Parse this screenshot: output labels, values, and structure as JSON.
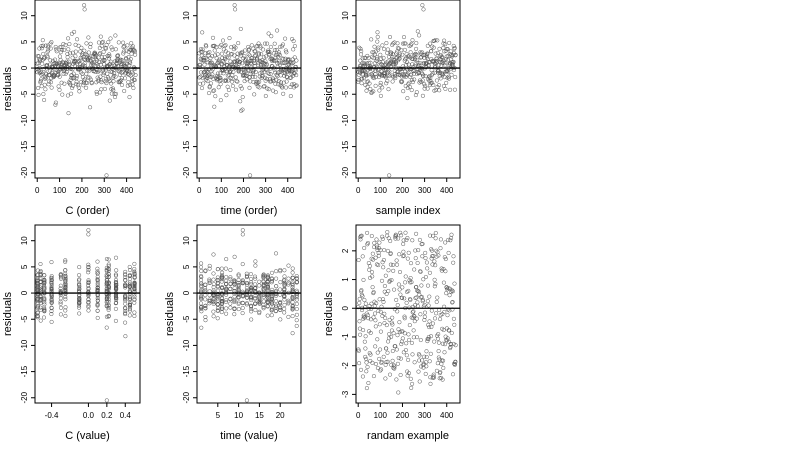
{
  "chart_data": [
    {
      "type": "scatter",
      "xlabel": "C (order)",
      "ylabel": "residuals",
      "x_ticks": [
        0,
        100,
        200,
        300,
        400
      ],
      "y_ticks": [
        10,
        5,
        0,
        -5,
        -10,
        -15,
        -20
      ],
      "xlim": [
        -10,
        460
      ],
      "ylim": [
        -21,
        13
      ],
      "reference_line_y": 0,
      "marker": "open circle",
      "pattern": "order",
      "n_points": 460,
      "spread": 3.4,
      "outliers": [
        {
          "x": 210,
          "y": 12
        },
        {
          "x": 212,
          "y": 11.2
        },
        {
          "x": 310,
          "y": -20.5
        }
      ]
    },
    {
      "type": "scatter",
      "xlabel": "time (order)",
      "ylabel": "residuals",
      "x_ticks": [
        0,
        100,
        200,
        300,
        400
      ],
      "y_ticks": [
        10,
        5,
        0,
        -5,
        -10,
        -15,
        -20
      ],
      "xlim": [
        -10,
        460
      ],
      "ylim": [
        -21,
        13
      ],
      "reference_line_y": 0,
      "marker": "open circle",
      "pattern": "order",
      "n_points": 460,
      "spread": 3.4,
      "outliers": [
        {
          "x": 160,
          "y": 12
        },
        {
          "x": 162,
          "y": 11.2
        },
        {
          "x": 230,
          "y": -20.5
        }
      ]
    },
    {
      "type": "scatter",
      "xlabel": "sample index",
      "ylabel": "residuals",
      "x_ticks": [
        0,
        100,
        200,
        300,
        400
      ],
      "y_ticks": [
        10,
        5,
        0,
        -5,
        -10,
        -15,
        -20
      ],
      "xlim": [
        -10,
        460
      ],
      "ylim": [
        -21,
        13
      ],
      "reference_line_y": 0,
      "marker": "open circle",
      "pattern": "order",
      "n_points": 460,
      "spread": 3.4,
      "outliers": [
        {
          "x": 290,
          "y": 12
        },
        {
          "x": 295,
          "y": 11.2
        },
        {
          "x": 140,
          "y": -20.5
        }
      ]
    },
    {
      "type": "scatter",
      "xlabel": "C (value)",
      "ylabel": "residuals",
      "x_ticks": [
        -0.4,
        0.0,
        0.2,
        0.4
      ],
      "x_tick_labels": [
        "-0.4",
        "0.0",
        "0.2",
        "0.4"
      ],
      "y_ticks": [
        10,
        5,
        0,
        -5,
        -10,
        -15,
        -20
      ],
      "xlim": [
        -0.58,
        0.56
      ],
      "ylim": [
        -21,
        13
      ],
      "reference_line_y": 0,
      "marker": "open circle",
      "pattern": "columns",
      "x_levels": [
        -0.55,
        -0.52,
        -0.48,
        -0.4,
        -0.3,
        -0.25,
        -0.1,
        0.0,
        0.1,
        0.2,
        0.22,
        0.3,
        0.4,
        0.45,
        0.5
      ],
      "n_points": 460,
      "spread": 3.4,
      "outliers": [
        {
          "x": 0.0,
          "y": 12
        },
        {
          "x": 0.0,
          "y": 11.2
        },
        {
          "x": 0.2,
          "y": -20.5
        }
      ]
    },
    {
      "type": "scatter",
      "xlabel": "time (value)",
      "ylabel": "residuals",
      "x_ticks": [
        5,
        10,
        15,
        20
      ],
      "y_ticks": [
        10,
        5,
        0,
        -5,
        -10,
        -15,
        -20
      ],
      "xlim": [
        0,
        25
      ],
      "ylim": [
        -21,
        13
      ],
      "reference_line_y": 0,
      "marker": "open circle",
      "pattern": "columns",
      "x_levels": [
        1,
        2,
        3,
        4,
        5,
        6,
        7,
        8,
        9,
        10,
        11,
        12,
        13,
        14,
        15,
        16,
        17,
        18,
        19,
        20,
        21,
        22,
        23,
        24
      ],
      "n_points": 460,
      "spread": 3.4,
      "outliers": [
        {
          "x": 11,
          "y": 12
        },
        {
          "x": 11,
          "y": 11.2
        },
        {
          "x": 12,
          "y": -20.5
        }
      ]
    },
    {
      "type": "scatter",
      "xlabel": "randam example",
      "ylabel": "residuals",
      "x_ticks": [
        0,
        100,
        200,
        300,
        400
      ],
      "y_ticks": [
        2,
        1,
        0,
        -1,
        -2,
        -3
      ],
      "xlim": [
        -10,
        460
      ],
      "ylim": [
        -3.3,
        2.9
      ],
      "reference_line_y": 0,
      "marker": "open circle",
      "pattern": "uniform",
      "n_points": 460,
      "spread": 2.6,
      "outliers": []
    }
  ]
}
